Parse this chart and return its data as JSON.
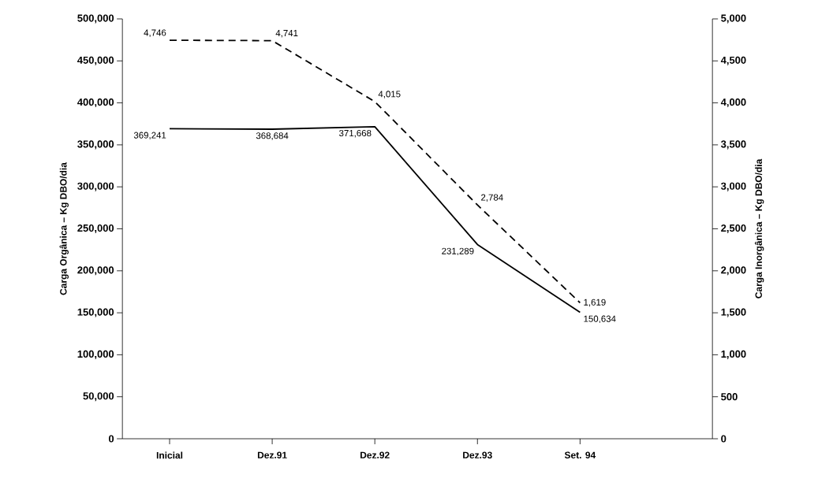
{
  "chart_data": {
    "type": "line",
    "categories": [
      "Inicial",
      "Dez.91",
      "Dez.92",
      "Dez.93",
      "Set. 94"
    ],
    "ylabel": "Carga Orgânica – Kg DBO/dia",
    "y2label": "Carga Inorgânica – Kg DBO/dia",
    "series": [
      {
        "color": "#000000",
        "line_style": "solid",
        "axis": "y",
        "values": [
          369241,
          368684,
          371668,
          231289,
          150634
        ],
        "value_labels": [
          "369,241",
          "368,684",
          "371,668",
          "231,289",
          "150,634"
        ]
      },
      {
        "color": "#000000",
        "line_style": "dashed",
        "axis": "y2",
        "values": [
          4746,
          4741,
          4015,
          2784,
          1619
        ],
        "value_labels": [
          "4,746",
          "4,741",
          "4,015",
          "2,784",
          "1,619"
        ]
      }
    ],
    "ylim": [
      0,
      500000
    ],
    "yticks": [
      {
        "value": 0,
        "label": "0"
      },
      {
        "value": 50000,
        "label": "50,000"
      },
      {
        "value": 100000,
        "label": "100,000"
      },
      {
        "value": 150000,
        "label": "150,000"
      },
      {
        "value": 200000,
        "label": "200,000"
      },
      {
        "value": 250000,
        "label": "250,000"
      },
      {
        "value": 300000,
        "label": "300,000"
      },
      {
        "value": 350000,
        "label": "350,000"
      },
      {
        "value": 400000,
        "label": "400,000"
      },
      {
        "value": 450000,
        "label": "450,000"
      },
      {
        "value": 500000,
        "label": "500,000"
      }
    ],
    "y2lim": [
      0,
      5000
    ],
    "y2ticks": [
      {
        "value": 0,
        "label": "0"
      },
      {
        "value": 500,
        "label": "500"
      },
      {
        "value": 1000,
        "label": "1,000"
      },
      {
        "value": 1500,
        "label": "1,500"
      },
      {
        "value": 2000,
        "label": "2,000"
      },
      {
        "value": 2500,
        "label": "2,500"
      },
      {
        "value": 3000,
        "label": "3,000"
      },
      {
        "value": 3500,
        "label": "3,500"
      },
      {
        "value": 4000,
        "label": "4,000"
      },
      {
        "value": 4500,
        "label": "4,500"
      },
      {
        "value": 5000,
        "label": "5,000"
      }
    ],
    "grid": false,
    "marker": "none"
  }
}
